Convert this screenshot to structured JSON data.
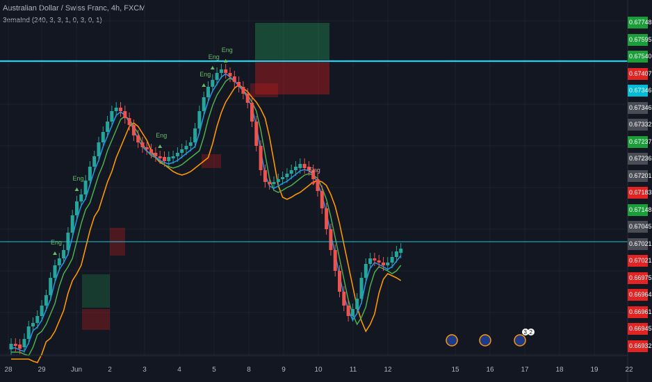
{
  "header": {
    "symbol": "Australian Dollar / Swiss Franc, 4h, FXCM",
    "indicator": "3emaInd (240, 3, 3, 1, 0, 3, 0, 1)"
  },
  "colors": {
    "background": "#131722",
    "up": "#26a69a",
    "down": "#ef5350",
    "ema_fast": "#2196f3",
    "ema_mid": "#4caf50",
    "ema_slow": "#ff9800",
    "hline": "#00e5ff"
  },
  "chart_data": {
    "type": "candlestick",
    "x_tick_labels": [
      "28",
      "29",
      "Jun",
      "2",
      "3",
      "4",
      "5",
      "8",
      "9",
      "10",
      "11",
      "12",
      "15",
      "16",
      "17",
      "18",
      "19",
      "22"
    ],
    "price_labels": [
      {
        "text": "0.67748",
        "color": "#1b9e3a"
      },
      {
        "text": "0.67595",
        "color": "#1b9e3a"
      },
      {
        "text": "0.67540",
        "color": "#1b9e3a"
      },
      {
        "text": "0.67407",
        "color": "#e02424"
      },
      {
        "text": "0.67346",
        "color": "#00bcd4"
      },
      {
        "text": "0.67346",
        "color": "#4a4d55"
      },
      {
        "text": "0.67332",
        "color": "#4a4d55"
      },
      {
        "text": "0.67237",
        "color": "#1b9e3a"
      },
      {
        "text": "0.67236",
        "color": "#4a4d55"
      },
      {
        "text": "0.67201",
        "color": "#4a4d55"
      },
      {
        "text": "0.67183",
        "color": "#e02424"
      },
      {
        "text": "0.67148",
        "color": "#1b9e3a"
      },
      {
        "text": "0.67045",
        "color": "#4a4d55"
      },
      {
        "text": "0.67021",
        "color": "#4a4d55"
      },
      {
        "text": "0.67021",
        "color": "#e02424"
      },
      {
        "text": "0.66975",
        "color": "#e02424"
      },
      {
        "text": "0.66964",
        "color": "#e02424"
      },
      {
        "text": "0.66961",
        "color": "#e02424"
      },
      {
        "text": "0.66945",
        "color": "#e02424"
      },
      {
        "text": "0.66932",
        "color": "#e02424"
      }
    ],
    "signals": [
      {
        "label": "Eng",
        "bar": 10
      },
      {
        "label": "Eng",
        "bar": 15
      },
      {
        "label": "Eng",
        "bar": 34
      },
      {
        "label": "Eng",
        "bar": 44
      },
      {
        "label": "Eng",
        "bar": 46
      },
      {
        "label": "Eng",
        "bar": 49
      },
      {
        "label": "Eng",
        "bar": 69
      }
    ],
    "events": [
      {
        "label": "3"
      },
      {
        "label": "2"
      }
    ],
    "hline_value": 0.6754
  }
}
